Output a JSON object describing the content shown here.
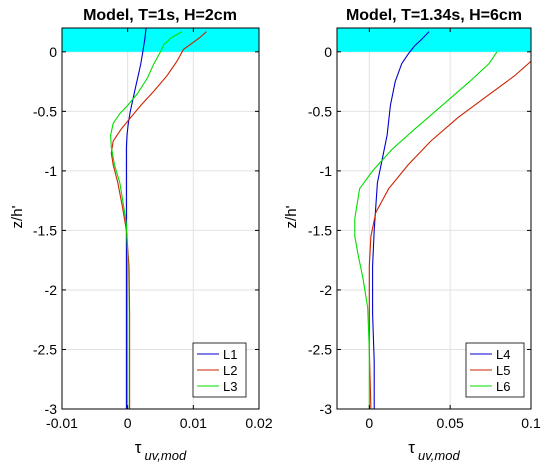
{
  "figure": {
    "shared_ylabel": "z/h'"
  },
  "chart_data": [
    {
      "type": "line",
      "title": "Model, T=1s, H=2cm",
      "xlabel": "τ uv,mod",
      "xlabel_symbol": "τ",
      "xlabel_sub": "uv,mod",
      "ylabel": "z/h'",
      "xlim": [
        -0.01,
        0.02
      ],
      "ylim": [
        -3,
        0.2
      ],
      "xticks": [
        "-0.01",
        "0",
        "0.01",
        "0.02"
      ],
      "xtick_values": [
        -0.01,
        0,
        0.01,
        0.02
      ],
      "yticks": [
        "0",
        "-0.5",
        "-1",
        "-1.5",
        "-2",
        "-2.5",
        "-3"
      ],
      "ytick_values": [
        0,
        -0.5,
        -1,
        -1.5,
        -2,
        -2.5,
        -3
      ],
      "grid": true,
      "legend_position": "bottom-right",
      "band": {
        "from": 0,
        "to": 0.2,
        "color": "#00ffff"
      },
      "series": [
        {
          "name": "L1",
          "color": "#0000cc",
          "points": [
            [
              0.0028,
              0.2
            ],
            [
              0.0026,
              0.1
            ],
            [
              0.0023,
              0
            ],
            [
              0.002,
              -0.1
            ],
            [
              0.0016,
              -0.2
            ],
            [
              0.0012,
              -0.3
            ],
            [
              0.0008,
              -0.4
            ],
            [
              0.0004,
              -0.5
            ],
            [
              0.0001,
              -0.6
            ],
            [
              -0.0001,
              -0.7
            ],
            [
              -0.0002,
              -0.8
            ],
            [
              -0.0002,
              -1
            ],
            [
              -0.0002,
              -1.2
            ],
            [
              -0.0002,
              -1.4
            ],
            [
              -0.0002,
              -1.6
            ],
            [
              -0.0002,
              -2
            ],
            [
              -0.0002,
              -2.5
            ],
            [
              -0.0002,
              -3
            ]
          ]
        },
        {
          "name": "L2",
          "color": "#cc2200",
          "points": [
            [
              0.012,
              0.17
            ],
            [
              0.011,
              0.12
            ],
            [
              0.0095,
              0.06
            ],
            [
              0.0085,
              0.02
            ],
            [
              0.0075,
              -0.08
            ],
            [
              0.006,
              -0.2
            ],
            [
              0.004,
              -0.33
            ],
            [
              0.002,
              -0.45
            ],
            [
              0.0005,
              -0.55
            ],
            [
              -0.001,
              -0.65
            ],
            [
              -0.0022,
              -0.75
            ],
            [
              -0.0025,
              -0.85
            ],
            [
              -0.0022,
              -0.95
            ],
            [
              -0.0015,
              -1.1
            ],
            [
              -0.0008,
              -1.3
            ],
            [
              -0.0002,
              -1.5
            ],
            [
              0.0002,
              -1.8
            ],
            [
              0.0003,
              -2.2
            ],
            [
              0.0003,
              -2.6
            ],
            [
              0.0003,
              -3
            ]
          ]
        },
        {
          "name": "L3",
          "color": "#00dd00",
          "points": [
            [
              0.0083,
              0.17
            ],
            [
              0.0067,
              0.12
            ],
            [
              0.0055,
              0.06
            ],
            [
              0.005,
              0
            ],
            [
              0.004,
              -0.1
            ],
            [
              0.003,
              -0.22
            ],
            [
              0.0015,
              -0.35
            ],
            [
              0,
              -0.45
            ],
            [
              -0.0012,
              -0.52
            ],
            [
              -0.0022,
              -0.6
            ],
            [
              -0.0026,
              -0.7
            ],
            [
              -0.0025,
              -0.8
            ],
            [
              -0.002,
              -0.95
            ],
            [
              -0.0012,
              -1.1
            ],
            [
              -0.0006,
              -1.3
            ],
            [
              -0.0002,
              -1.45
            ],
            [
              0,
              -1.7
            ],
            [
              0,
              -2
            ],
            [
              0,
              -2.5
            ],
            [
              0,
              -3
            ]
          ]
        }
      ]
    },
    {
      "type": "line",
      "title": "Model, T=1.34s, H=6cm",
      "xlabel": "τ uv,mod",
      "xlabel_symbol": "τ",
      "xlabel_sub": "uv,mod",
      "ylabel": "z/h'",
      "xlim": [
        -0.02,
        0.1
      ],
      "ylim": [
        -3,
        0.2
      ],
      "xticks": [
        "0",
        "0.05",
        "0.1"
      ],
      "xtick_values": [
        0,
        0.05,
        0.1
      ],
      "yticks": [
        "0",
        "-0.5",
        "-1",
        "-1.5",
        "-2",
        "-2.5",
        "-3"
      ],
      "ytick_values": [
        0,
        -0.5,
        -1,
        -1.5,
        -2,
        -2.5,
        -3
      ],
      "grid": true,
      "legend_position": "bottom-right",
      "band": {
        "from": 0,
        "to": 0.2,
        "color": "#00ffff"
      },
      "series": [
        {
          "name": "L4",
          "color": "#0000cc",
          "points": [
            [
              0.037,
              0.17
            ],
            [
              0.032,
              0.1
            ],
            [
              0.028,
              0.05
            ],
            [
              0.024,
              -0.02
            ],
            [
              0.02,
              -0.1
            ],
            [
              0.016,
              -0.25
            ],
            [
              0.013,
              -0.45
            ],
            [
              0.011,
              -0.7
            ],
            [
              0.008,
              -0.9
            ],
            [
              0.005,
              -1.1
            ],
            [
              0.004,
              -1.3
            ],
            [
              0.003,
              -1.5
            ],
            [
              0.002,
              -1.8
            ],
            [
              0.002,
              -2.2
            ],
            [
              0.003,
              -2.6
            ],
            [
              0.003,
              -3
            ]
          ]
        },
        {
          "name": "L5",
          "color": "#cc2200",
          "points": [
            [
              0.1,
              -0.08
            ],
            [
              0.09,
              -0.2
            ],
            [
              0.072,
              -0.38
            ],
            [
              0.055,
              -0.55
            ],
            [
              0.038,
              -0.75
            ],
            [
              0.024,
              -0.95
            ],
            [
              0.012,
              -1.15
            ],
            [
              0.004,
              -1.35
            ],
            [
              0.001,
              -1.55
            ],
            [
              0,
              -1.8
            ],
            [
              0,
              -2.1
            ],
            [
              0,
              -2.5
            ],
            [
              0.001,
              -3
            ]
          ]
        },
        {
          "name": "L6",
          "color": "#00dd00",
          "points": [
            [
              0.079,
              0
            ],
            [
              0.074,
              -0.1
            ],
            [
              0.062,
              -0.25
            ],
            [
              0.045,
              -0.45
            ],
            [
              0.028,
              -0.65
            ],
            [
              0.014,
              -0.82
            ],
            [
              0.002,
              -1
            ],
            [
              -0.006,
              -1.15
            ],
            [
              -0.009,
              -1.4
            ],
            [
              -0.009,
              -1.55
            ],
            [
              -0.007,
              -1.7
            ],
            [
              -0.004,
              -1.9
            ],
            [
              -0.001,
              -2.15
            ],
            [
              0,
              -2.5
            ],
            [
              0,
              -3
            ]
          ]
        }
      ]
    }
  ]
}
